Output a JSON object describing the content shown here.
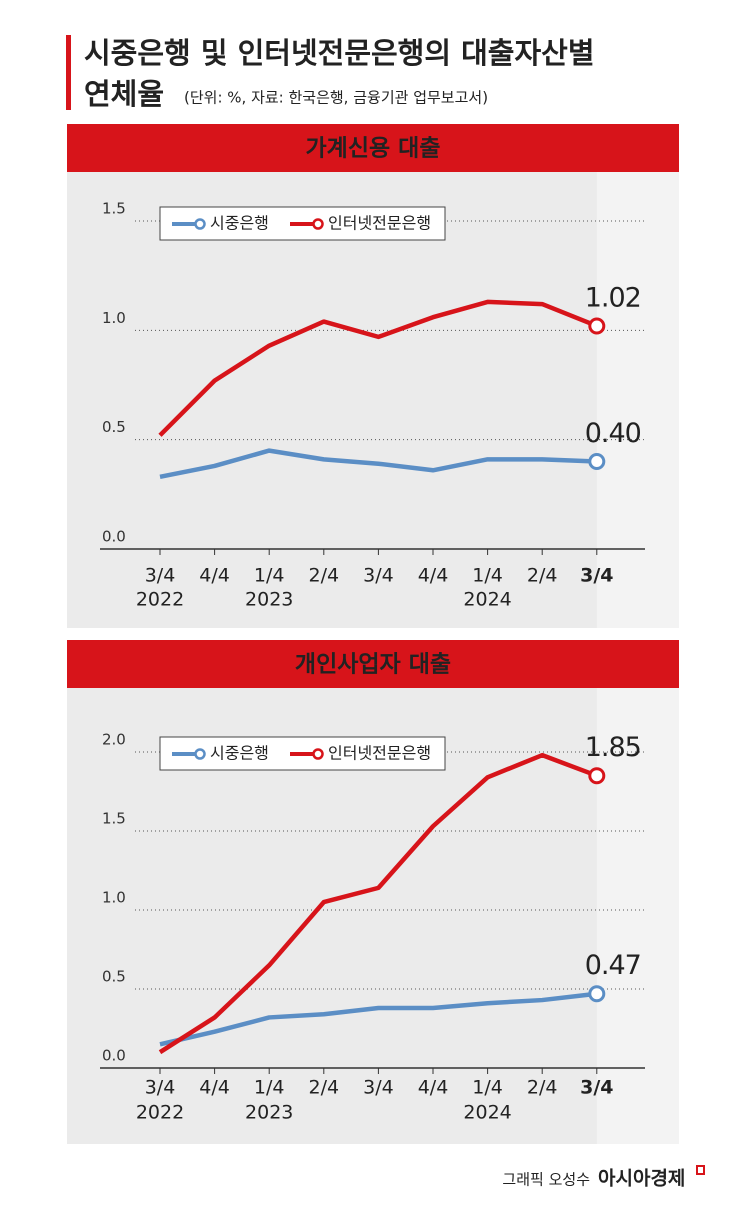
{
  "header": {
    "title": [
      "시중은행 및 인터넷전문은행의 대출자산별",
      "연체율"
    ],
    "unit": "(단위: %, 자료: 한국은행, 금융기관 업무보고서)"
  },
  "chart_data": [
    {
      "type": "line",
      "title": "가계신용 대출",
      "categories": [
        "3/4",
        "4/4",
        "1/4",
        "2/4",
        "3/4",
        "4/4",
        "1/4",
        "2/4",
        "3/4"
      ],
      "category_years": [
        "2022",
        null,
        "2023",
        null,
        null,
        null,
        "2024",
        null,
        null
      ],
      "series": [
        {
          "name": "시중은행",
          "color": "#5b8ec5",
          "values": [
            0.33,
            0.38,
            0.45,
            0.41,
            0.39,
            0.36,
            0.41,
            0.41,
            0.4
          ],
          "value_labels": [
            null,
            null,
            null,
            null,
            null,
            null,
            null,
            null,
            "0.40"
          ]
        },
        {
          "name": "인터넷전문은행",
          "color": "#d7141a",
          "values": [
            0.52,
            0.77,
            0.93,
            1.04,
            0.97,
            1.06,
            1.13,
            1.12,
            1.02
          ],
          "value_labels": [
            null,
            null,
            null,
            null,
            null,
            null,
            null,
            null,
            "1.02"
          ]
        }
      ],
      "ylim": [
        0,
        1.5
      ],
      "yticks": [
        {
          "value": 0,
          "label": "0.0"
        },
        {
          "value": 0.5,
          "label": "0.5"
        },
        {
          "value": 1,
          "label": "1.0"
        },
        {
          "value": 1.5,
          "label": "1.5"
        }
      ],
      "grid": true
    },
    {
      "type": "line",
      "title": "개인사업자 대출",
      "categories": [
        "3/4",
        "4/4",
        "1/4",
        "2/4",
        "3/4",
        "4/4",
        "1/4",
        "2/4",
        "3/4"
      ],
      "category_years": [
        "2022",
        null,
        "2023",
        null,
        null,
        null,
        "2024",
        null,
        null
      ],
      "series": [
        {
          "name": "시중은행",
          "color": "#5b8ec5",
          "values": [
            0.15,
            0.23,
            0.32,
            0.34,
            0.38,
            0.38,
            0.41,
            0.43,
            0.47
          ],
          "value_labels": [
            null,
            null,
            null,
            null,
            null,
            null,
            null,
            null,
            "0.47"
          ]
        },
        {
          "name": "인터넷전문은행",
          "color": "#d7141a",
          "values": [
            0.1,
            0.32,
            0.65,
            1.05,
            1.14,
            1.53,
            1.84,
            1.98,
            1.85
          ],
          "value_labels": [
            null,
            null,
            null,
            null,
            null,
            null,
            null,
            null,
            "1.85"
          ]
        }
      ],
      "ylim": [
        0,
        2
      ],
      "yticks": [
        {
          "value": 0,
          "label": "0.0"
        },
        {
          "value": 0.5,
          "label": "0.5"
        },
        {
          "value": 1,
          "label": "1.0"
        },
        {
          "value": 1.5,
          "label": "1.5"
        },
        {
          "value": 2,
          "label": "2.0"
        }
      ],
      "grid": true
    }
  ],
  "footer": {
    "credit": "그래픽 오성수",
    "brand": "아시아경제"
  }
}
